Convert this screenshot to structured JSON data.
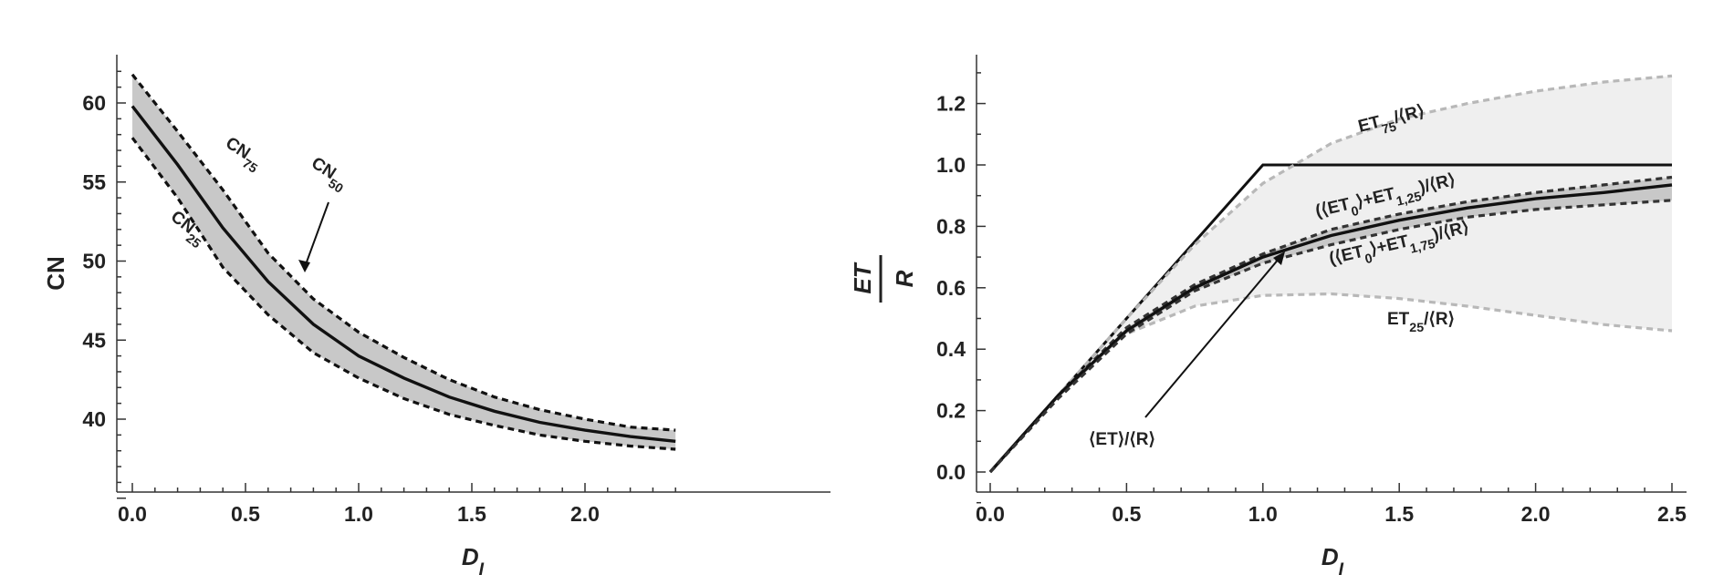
{
  "chart_data": [
    {
      "type": "line",
      "xlabel_main": "D",
      "xlabel_sub": "I",
      "ylabel": "CN",
      "xlim": [
        -0.05,
        2.42
      ],
      "ylim": [
        35,
        63
      ],
      "xticks": [
        "0.0",
        "0.5",
        "1.0",
        "1.5",
        "2.0"
      ],
      "yticks": [
        "40",
        "45",
        "50",
        "55",
        "60"
      ],
      "x": [
        0.0,
        0.2,
        0.4,
        0.6,
        0.8,
        1.0,
        1.2,
        1.4,
        1.6,
        1.8,
        2.0,
        2.2,
        2.4
      ],
      "series": [
        {
          "name": "CN75",
          "style": "dashed",
          "values": [
            61.8,
            58.2,
            54.5,
            50.5,
            47.6,
            45.5,
            43.9,
            42.5,
            41.4,
            40.6,
            40.0,
            39.5,
            39.3
          ]
        },
        {
          "name": "CN50",
          "style": "solid",
          "values": [
            59.8,
            56.1,
            52.1,
            48.7,
            46.0,
            44.0,
            42.6,
            41.4,
            40.5,
            39.8,
            39.3,
            38.9,
            38.6
          ]
        },
        {
          "name": "CN25",
          "style": "dashed",
          "values": [
            57.8,
            54.0,
            49.6,
            46.6,
            44.2,
            42.6,
            41.3,
            40.3,
            39.6,
            39.0,
            38.6,
            38.3,
            38.1
          ]
        }
      ],
      "annotations": [
        {
          "main": "CN",
          "sub": "75"
        },
        {
          "main": "CN",
          "sub": "50"
        },
        {
          "main": "CN",
          "sub": "25"
        }
      ]
    },
    {
      "type": "line",
      "xlabel_main": "D",
      "xlabel_sub": "I",
      "ylabel_top": "ET",
      "ylabel_bottom": "R",
      "xlim": [
        -0.02,
        2.52
      ],
      "ylim": [
        -0.05,
        1.35
      ],
      "xticks": [
        "0.0",
        "0.5",
        "1.0",
        "1.5",
        "2.0",
        "2.5"
      ],
      "yticks": [
        "0.0",
        "0.2",
        "0.4",
        "0.6",
        "0.8",
        "1.0",
        "1.2"
      ],
      "x": [
        0.0,
        0.25,
        0.5,
        0.75,
        1.0,
        1.25,
        1.5,
        1.75,
        2.0,
        2.25,
        2.5
      ],
      "series": [
        {
          "name": "limit",
          "style": "solid-thin",
          "values": [
            0.0,
            0.25,
            0.5,
            0.75,
            1.0,
            1.0,
            1.0,
            1.0,
            1.0,
            1.0,
            1.0
          ]
        },
        {
          "name": "ET75/⟨R⟩",
          "style": "dashed-light",
          "values": [
            0.0,
            0.25,
            0.5,
            0.74,
            0.94,
            1.07,
            1.15,
            1.2,
            1.24,
            1.27,
            1.29
          ]
        },
        {
          "name": "ET25/⟨R⟩",
          "style": "dashed-light",
          "values": [
            0.0,
            0.25,
            0.45,
            0.54,
            0.575,
            0.58,
            0.565,
            0.54,
            0.51,
            0.48,
            0.46
          ]
        },
        {
          "name": "(⟨ET0⟩+ET1,25)/⟨R⟩",
          "style": "dashed-dark",
          "values": [
            0.0,
            0.25,
            0.47,
            0.61,
            0.71,
            0.79,
            0.84,
            0.88,
            0.91,
            0.935,
            0.96
          ]
        },
        {
          "name": "⟨ET⟩/⟨R⟩",
          "style": "solid",
          "values": [
            0.0,
            0.25,
            0.46,
            0.6,
            0.7,
            0.77,
            0.82,
            0.86,
            0.89,
            0.91,
            0.935
          ]
        },
        {
          "name": "(⟨ET0⟩+ET1,75)/⟨R⟩",
          "style": "dashed-dark",
          "values": [
            0.0,
            0.24,
            0.45,
            0.59,
            0.68,
            0.74,
            0.79,
            0.83,
            0.855,
            0.87,
            0.885
          ]
        }
      ],
      "annotations": [
        {
          "parts": [
            {
              "t": "ET"
            },
            {
              "t": "75",
              "sub": true
            },
            {
              "t": "/⟨R⟩"
            }
          ]
        },
        {
          "parts": [
            {
              "t": "(⟨"
            },
            {
              "t": "ET"
            },
            {
              "t": "0",
              "sub": true
            },
            {
              "t": "⟩+"
            },
            {
              "t": "ET"
            },
            {
              "t": "1,25",
              "sub": true
            },
            {
              "t": ")/⟨R⟩"
            }
          ]
        },
        {
          "parts": [
            {
              "t": "(⟨"
            },
            {
              "t": "ET"
            },
            {
              "t": "0",
              "sub": true
            },
            {
              "t": "⟩+"
            },
            {
              "t": "ET"
            },
            {
              "t": "1,75",
              "sub": true
            },
            {
              "t": ")/⟨R⟩"
            }
          ]
        },
        {
          "parts": [
            {
              "t": "ET"
            },
            {
              "t": "25",
              "sub": true
            },
            {
              "t": "/⟨R⟩"
            }
          ]
        },
        {
          "parts": [
            {
              "t": "⟨"
            },
            {
              "t": "ET"
            },
            {
              "t": "⟩/⟨R⟩"
            }
          ]
        }
      ]
    }
  ]
}
